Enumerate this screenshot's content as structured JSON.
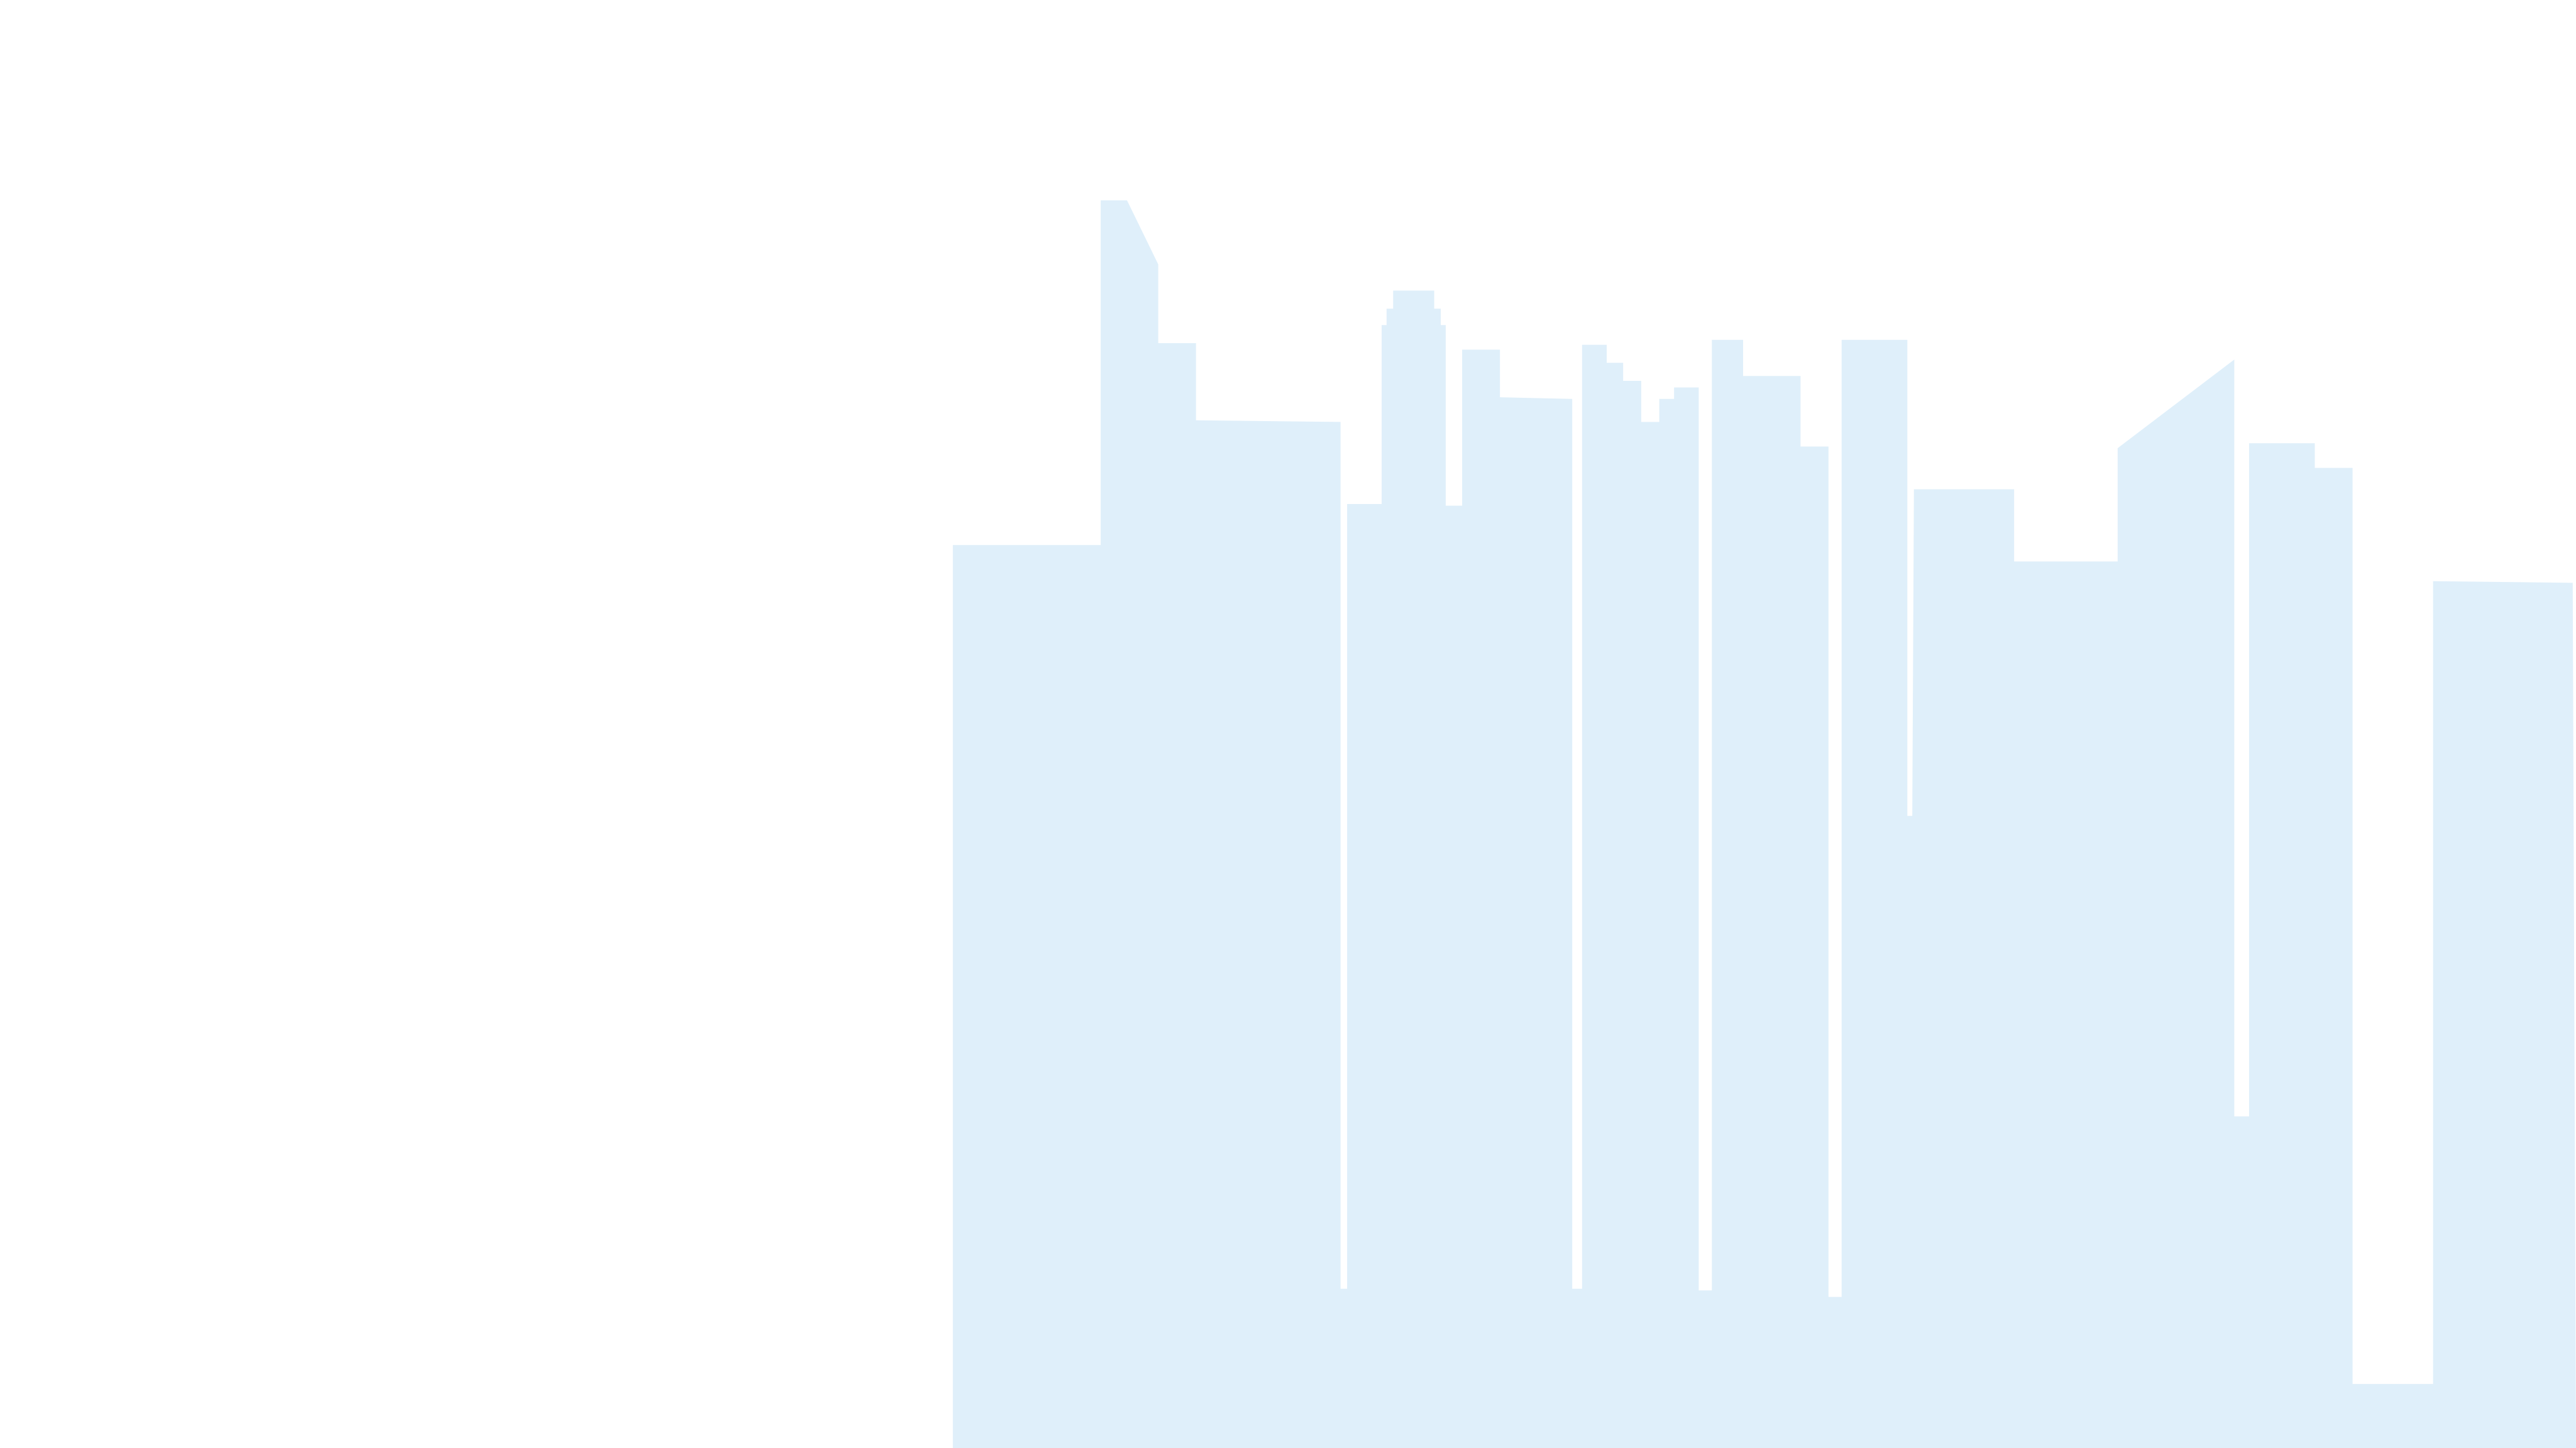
{
  "illustration": {
    "subject": "city-skyline-silhouette",
    "fill_color": "#DFEFFA",
    "background_color": "#FFFFFF"
  }
}
